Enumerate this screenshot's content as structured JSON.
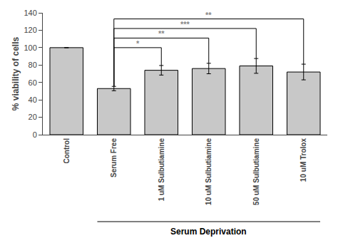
{
  "chart_data": {
    "type": "bar",
    "categories": [
      "Control",
      "Serum Free",
      "1 uM Sulbutiamine",
      "10 uM Sulbutiamine",
      "50 uM Sulbutiamine",
      "10 uM Trolox"
    ],
    "values": [
      100,
      53,
      74,
      76,
      79,
      72
    ],
    "errors": [
      0,
      2.5,
      5.5,
      6.0,
      8.5,
      9.0
    ],
    "color": "#c8c8c8",
    "ylim": [
      0,
      140
    ],
    "yticks": [
      0,
      20,
      40,
      60,
      80,
      100,
      120,
      140
    ],
    "ylabel": "% viability of cells",
    "xlabel": "Serum Deprivation",
    "xlabel_span": [
      "Serum Free",
      "10 uM Trolox"
    ],
    "annotations": [
      {
        "from": "Serum Free",
        "to": "1 uM Sulbutiamine",
        "y": 100,
        "label": "*",
        "color": "#888888"
      },
      {
        "from": "Serum Free",
        "to": "10 uM Sulbutiamine",
        "y": 111,
        "label": "**",
        "color": "#888888"
      },
      {
        "from": "Serum Free",
        "to": "50 uM Sulbutiamine",
        "y": 122,
        "label": "***",
        "color": "#888888"
      },
      {
        "from": "Serum Free",
        "to": "10 uM Trolox",
        "y": 133,
        "label": "**",
        "color": "#888888"
      }
    ],
    "grid": false
  }
}
